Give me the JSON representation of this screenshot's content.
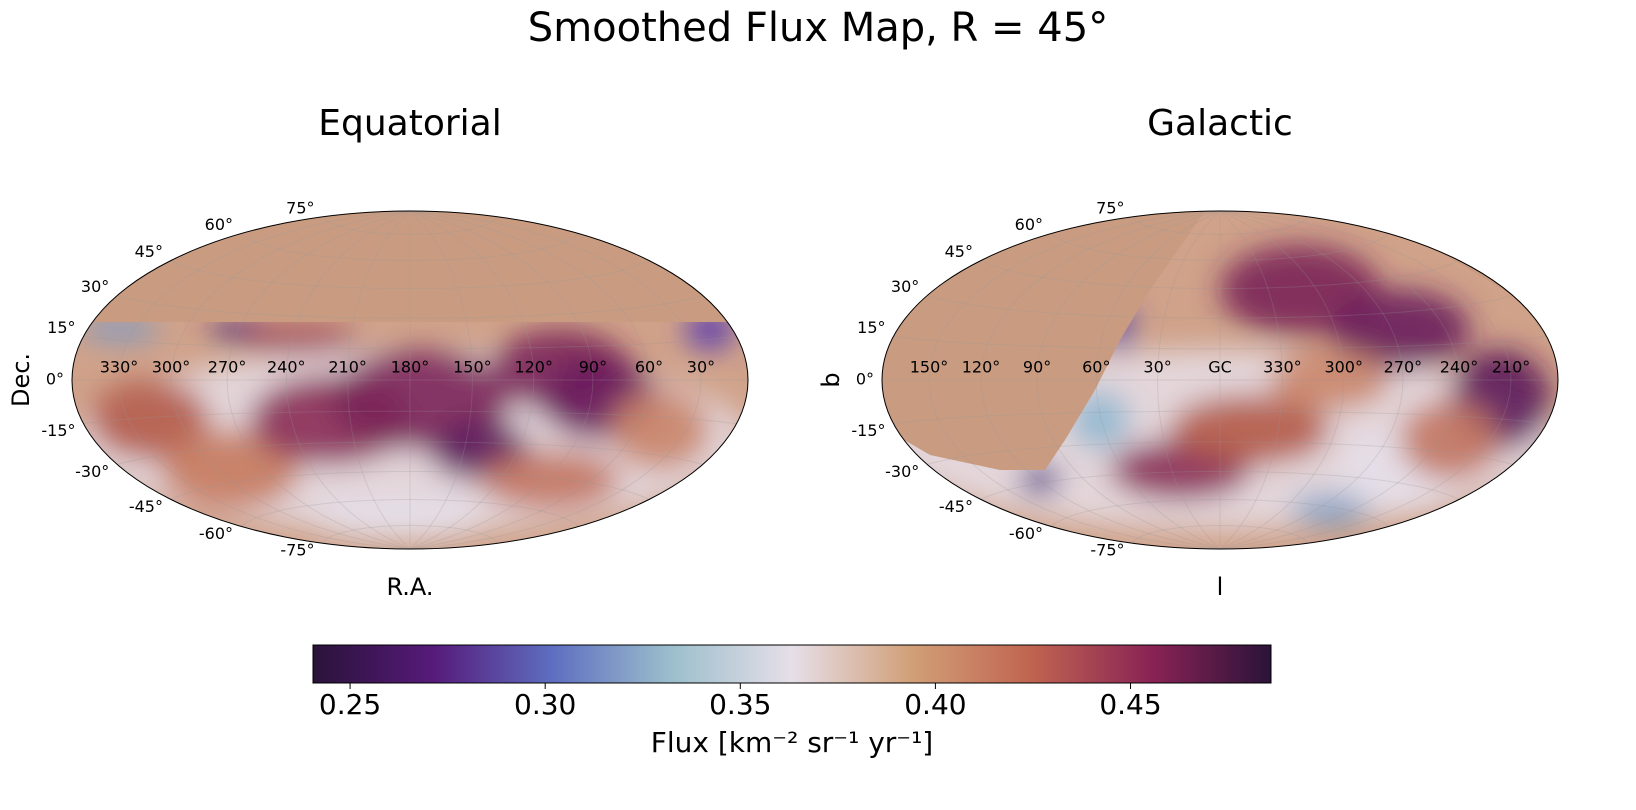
{
  "title": "Smoothed Flux Map, R = 45°",
  "chart_data": [
    {
      "type": "map",
      "title": "Equatorial",
      "xlabel": "R.A.",
      "ylabel": "Dec.",
      "xticks": [
        {
          "value": 330,
          "label": "330°"
        },
        {
          "value": 300,
          "label": "300°"
        },
        {
          "value": 270,
          "label": "270°"
        },
        {
          "value": 240,
          "label": "240°"
        },
        {
          "value": 210,
          "label": "210°"
        },
        {
          "value": 180,
          "label": "180°"
        },
        {
          "value": 150,
          "label": "150°"
        },
        {
          "value": 120,
          "label": "120°"
        },
        {
          "value": 90,
          "label": "90°"
        },
        {
          "value": 60,
          "label": "60°"
        },
        {
          "value": 30,
          "label": "30°"
        }
      ],
      "center_lon": 180,
      "yticks": [
        {
          "value": 75,
          "label": "75°"
        },
        {
          "value": 60,
          "label": "60°"
        },
        {
          "value": 45,
          "label": "45°"
        },
        {
          "value": 30,
          "label": "30°"
        },
        {
          "value": 15,
          "label": "15°"
        },
        {
          "value": 0,
          "label": "0°"
        },
        {
          "value": -15,
          "label": "-15°"
        },
        {
          "value": -30,
          "label": "-30°"
        },
        {
          "value": -45,
          "label": "-45°"
        },
        {
          "value": -60,
          "label": "-60°"
        },
        {
          "value": -75,
          "label": "-75°"
        }
      ]
    },
    {
      "type": "map",
      "title": "Galactic",
      "xlabel": "l",
      "ylabel": "b",
      "xticks": [
        {
          "value": 150,
          "label": "150°"
        },
        {
          "value": 120,
          "label": "120°"
        },
        {
          "value": 90,
          "label": "90°"
        },
        {
          "value": 60,
          "label": "60°"
        },
        {
          "value": 30,
          "label": "30°"
        },
        {
          "value": 0,
          "label": "GC"
        },
        {
          "value": 330,
          "label": "330°"
        },
        {
          "value": 300,
          "label": "300°"
        },
        {
          "value": 270,
          "label": "270°"
        },
        {
          "value": 240,
          "label": "240°"
        },
        {
          "value": 210,
          "label": "210°"
        }
      ],
      "center_lon": 0,
      "yticks": [
        {
          "value": 75,
          "label": "75°"
        },
        {
          "value": 60,
          "label": "60°"
        },
        {
          "value": 45,
          "label": "45°"
        },
        {
          "value": 30,
          "label": "30°"
        },
        {
          "value": 15,
          "label": "15°"
        },
        {
          "value": 0,
          "label": "0°"
        },
        {
          "value": -15,
          "label": "-15°"
        },
        {
          "value": -30,
          "label": "-30°"
        },
        {
          "value": -45,
          "label": "-45°"
        },
        {
          "value": -60,
          "label": "-60°"
        },
        {
          "value": -75,
          "label": "-75°"
        }
      ]
    },
    {
      "type": "colorbar",
      "label": "Flux [km⁻² sr⁻¹ yr⁻¹]",
      "xlim": [
        0.2405,
        0.486
      ],
      "xticks": [
        0.25,
        {
          "value": 0.3,
          "label": "0.30"
        },
        0.35,
        {
          "value": 0.4,
          "label": "0.40"
        },
        0.45
      ],
      "colormap": [
        "#2a1339",
        "#561a7a",
        "#5e6ec0",
        "#9cbfcc",
        "#e6dfe8",
        "#d19f78",
        "#c06450",
        "#8a2355",
        "#2a1339"
      ]
    }
  ]
}
